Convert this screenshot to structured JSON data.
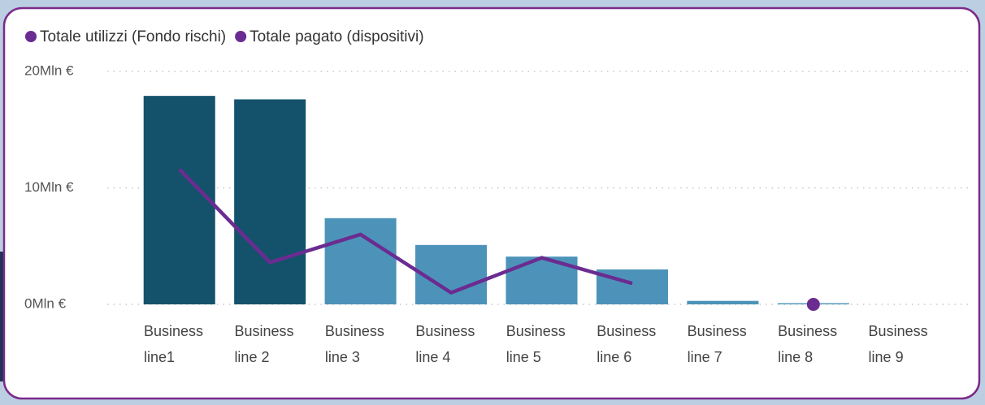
{
  "chart_data": {
    "type": "combo",
    "categories": [
      "Business line1",
      "Business line 2",
      "Business line 3",
      "Business line 4",
      "Business line 5",
      "Business line 6",
      "Business line 7",
      "Business line 8",
      "Business line 9"
    ],
    "series": [
      {
        "name": "Totale utilizzi (Fondo rischi)",
        "type": "bar",
        "color": "#6b2c91",
        "colors": [
          "#14526b",
          "#14526b",
          "#4d93b9",
          "#4d93b9",
          "#4d93b9",
          "#4d93b9",
          "#4d93b9",
          "#4d93b9",
          "#4d93b9"
        ],
        "values": [
          17.9,
          17.6,
          7.4,
          5.1,
          4.1,
          3.0,
          0.3,
          0.1,
          null
        ]
      },
      {
        "name": "Totale pagato (dispositivi)",
        "type": "line",
        "color": "#6b2c91",
        "values": [
          11.6,
          3.6,
          6.0,
          1.0,
          4.0,
          1.8,
          null,
          0,
          null
        ]
      }
    ],
    "ylim": [
      0,
      20
    ],
    "yticks": [
      {
        "value": 0,
        "label": "0Mln €"
      },
      {
        "value": 10,
        "label": "10Mln €"
      },
      {
        "value": 20,
        "label": "20Mln €"
      }
    ],
    "grid": true,
    "legend": "top-left"
  }
}
